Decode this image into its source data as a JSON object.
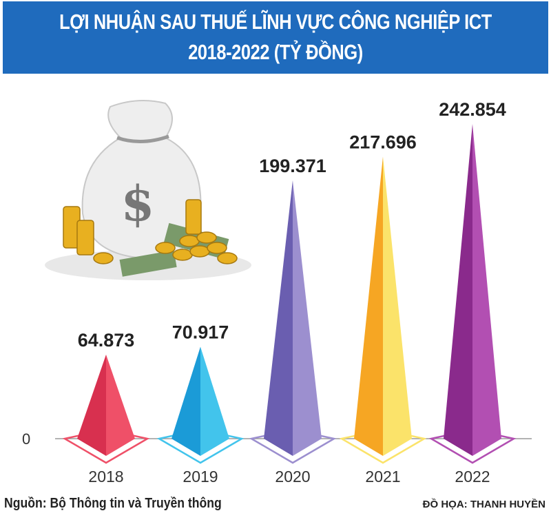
{
  "title_line1": "LỢI NHUẬN SAU THUẾ LĨNH VỰC CÔNG NGHIỆP ICT",
  "title_line2": "2018-2022 (TỶ ĐỒNG)",
  "source": "Nguồn: Bộ Thông tin và Truyền thông",
  "credit": "ĐỒ HỌA: THANH HUYỀN",
  "illustration": "money-bag-with-coins-and-banknotes",
  "colors": {
    "title_bg": "#1f6bbd"
  },
  "chart_data": {
    "type": "bar",
    "style": "pyramid",
    "title": "LỢI NHUẬN SAU THUẾ LĨNH VỰC CÔNG NGHIỆP ICT 2018-2022 (TỶ ĐỒNG)",
    "categories": [
      "2018",
      "2019",
      "2020",
      "2021",
      "2022"
    ],
    "values": [
      64873,
      70917,
      199371,
      217696,
      242854
    ],
    "value_labels": [
      "64.873",
      "70.917",
      "199.371",
      "217.696",
      "242.854"
    ],
    "y_tick_labels": [
      "0"
    ],
    "ylim": [
      0,
      242854
    ],
    "grid": false,
    "colors": [
      {
        "dark": "#d8304f",
        "light": "#ef5068"
      },
      {
        "dark": "#1b9bd7",
        "light": "#42c4ec"
      },
      {
        "dark": "#6a5eb0",
        "light": "#9c8fcf"
      },
      {
        "dark": "#f6a623",
        "light": "#fbe36a"
      },
      {
        "dark": "#8a2a8c",
        "light": "#b24fb2"
      }
    ]
  }
}
